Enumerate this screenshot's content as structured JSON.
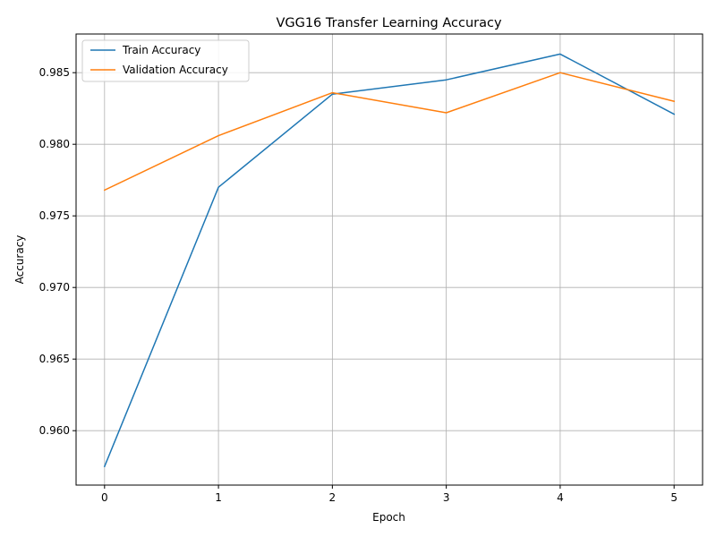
{
  "chart_data": {
    "type": "line",
    "title": "VGG16 Transfer Learning Accuracy",
    "xlabel": "Epoch",
    "ylabel": "Accuracy",
    "x": [
      0,
      1,
      2,
      3,
      4,
      5
    ],
    "x_ticks": [
      "0",
      "1",
      "2",
      "3",
      "4",
      "5"
    ],
    "y_ticks": [
      "0.960",
      "0.965",
      "0.970",
      "0.975",
      "0.980",
      "0.985"
    ],
    "xlim": [
      -0.25,
      5.25
    ],
    "ylim": [
      0.9562,
      0.9877
    ],
    "grid": true,
    "legend_position": "top-left",
    "series": [
      {
        "name": "Train Accuracy",
        "color": "#1f77b4",
        "values": [
          0.9575,
          0.977,
          0.9835,
          0.9845,
          0.9863,
          0.9821
        ]
      },
      {
        "name": "Validation Accuracy",
        "color": "#ff7f0e",
        "values": [
          0.9768,
          0.9806,
          0.9836,
          0.9822,
          0.985,
          0.983
        ]
      }
    ]
  }
}
